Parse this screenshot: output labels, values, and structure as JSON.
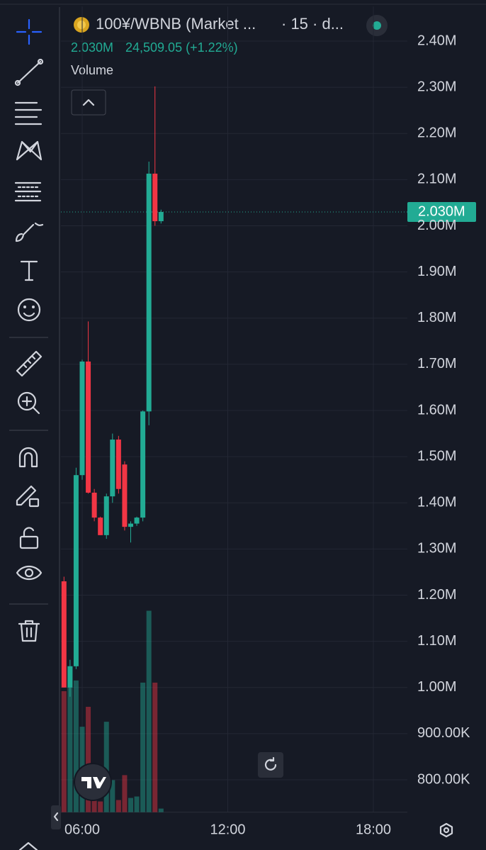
{
  "header": {
    "symbol": "100¥/WBNB (Market ...",
    "interval": "· 15 · d...",
    "change": "24,509.05 (+1.22%)",
    "volume_label": "Volume"
  },
  "chart_data": {
    "type": "candlestick",
    "categories": [
      "05:15",
      "05:30",
      "05:45",
      "06:00",
      "06:15",
      "06:30",
      "06:45",
      "07:00",
      "07:15",
      "07:30",
      "07:45",
      "08:00",
      "08:15",
      "08:30",
      "08:45",
      "09:00",
      "09:15"
    ],
    "open": [
      1230000,
      1000000,
      1046000,
      1460000,
      1706000,
      1422000,
      1368000,
      1330000,
      1414000,
      1537000,
      1483000,
      1348000,
      1355000,
      1368000,
      1598000,
      2113000,
      2010000
    ],
    "high": [
      1240000,
      1060000,
      1476000,
      1710000,
      1793000,
      1430000,
      1370000,
      1420000,
      1550000,
      1545000,
      1490000,
      1360000,
      1370000,
      1600000,
      2139000,
      2302000,
      2035000
    ],
    "low": [
      1000000,
      980000,
      1040000,
      1450000,
      1420000,
      1360000,
      1330000,
      1322000,
      1400000,
      1420000,
      1340000,
      1314000,
      1350000,
      1360000,
      1568000,
      2000000,
      2005000
    ],
    "close": [
      1000000,
      1046000,
      1460000,
      1706000,
      1422000,
      1368000,
      1330000,
      1414000,
      1537000,
      1430000,
      1348000,
      1355000,
      1368000,
      1598000,
      2113000,
      2010000,
      2030000
    ],
    "volume": [
      170,
      205,
      185,
      120,
      148,
      17,
      15,
      127,
      45,
      17,
      52,
      20,
      22,
      182,
      283,
      182,
      5
    ],
    "up_color": "#22ab94",
    "down_color": "#f23645",
    "last_price": {
      "value": 2030000,
      "label": "2.030M"
    },
    "ylim": [
      730000,
      2475000
    ],
    "yticks": [
      {
        "value": 800000,
        "label": "800.00K"
      },
      {
        "value": 900000,
        "label": "900.00K"
      },
      {
        "value": 1000000,
        "label": "1.00M"
      },
      {
        "value": 1100000,
        "label": "1.10M"
      },
      {
        "value": 1200000,
        "label": "1.20M"
      },
      {
        "value": 1300000,
        "label": "1.30M"
      },
      {
        "value": 1400000,
        "label": "1.40M"
      },
      {
        "value": 1500000,
        "label": "1.50M"
      },
      {
        "value": 1600000,
        "label": "1.60M"
      },
      {
        "value": 1700000,
        "label": "1.70M"
      },
      {
        "value": 1800000,
        "label": "1.80M"
      },
      {
        "value": 1900000,
        "label": "1.90M"
      },
      {
        "value": 2000000,
        "label": "2.00M"
      },
      {
        "value": 2100000,
        "label": "2.10M"
      },
      {
        "value": 2200000,
        "label": "2.20M"
      },
      {
        "value": 2300000,
        "label": "2.30M"
      },
      {
        "value": 2400000,
        "label": "2.40M"
      }
    ],
    "xticks": [
      "06:00",
      "12:00",
      "18:00"
    ],
    "grid": true
  }
}
